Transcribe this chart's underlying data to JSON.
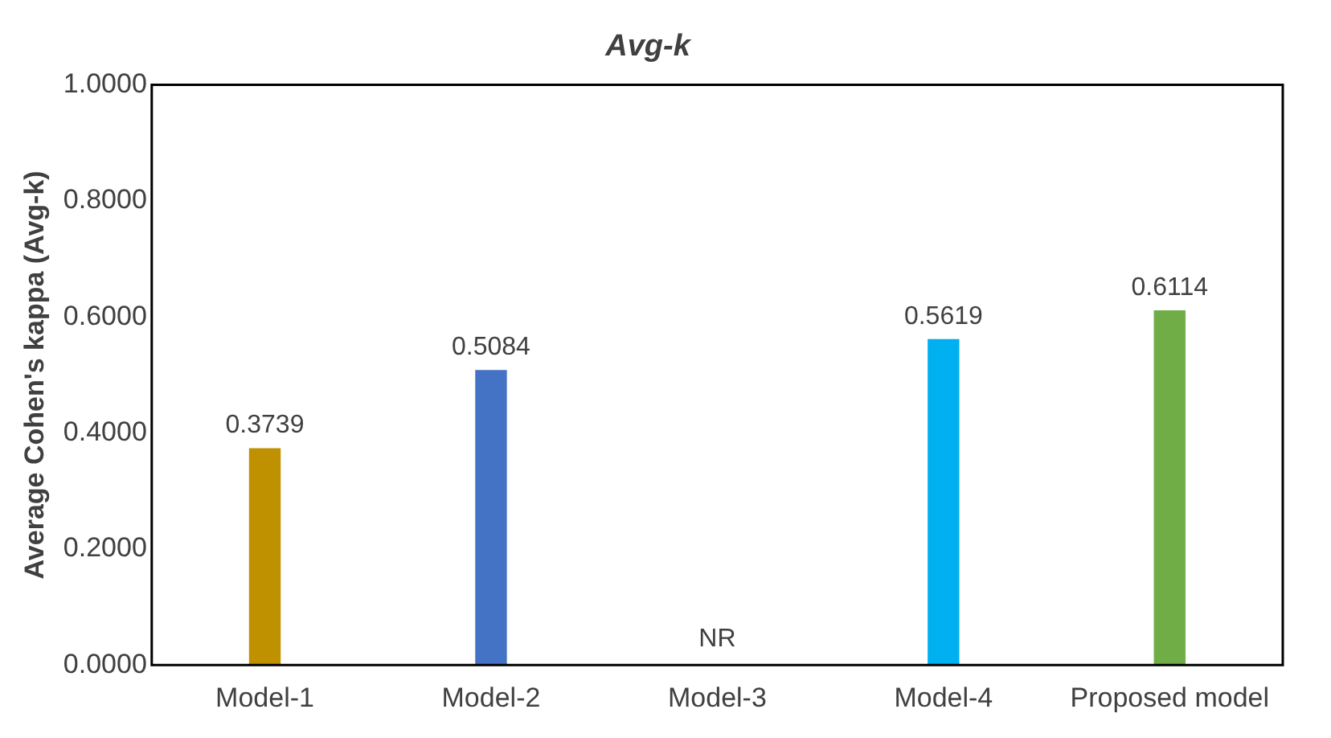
{
  "chart_data": {
    "type": "bar",
    "title": "Avg-k",
    "ylabel": "Average Cohen's kappa (Avg-k)",
    "categories": [
      "Model-1",
      "Model-2",
      "Model-3",
      "Model-4",
      "Proposed model"
    ],
    "values": [
      0.3739,
      0.5084,
      null,
      0.5619,
      0.6114
    ],
    "colors": [
      "#bf9000",
      "#4472c4",
      "#7f7f7f",
      "#00b0f0",
      "#70ad47"
    ],
    "value_labels": [
      "0.3739",
      "0.5084",
      "NR",
      "0.5619",
      "0.6114"
    ],
    "ylim": [
      0,
      1
    ],
    "yticks": [
      {
        "value": 0,
        "label": "0.0000"
      },
      {
        "value": 0.2,
        "label": "0.2000"
      },
      {
        "value": 0.4,
        "label": "0.4000"
      },
      {
        "value": 0.6,
        "label": "0.6000"
      },
      {
        "value": 0.8,
        "label": "0.8000"
      },
      {
        "value": 1,
        "label": "1.0000"
      }
    ],
    "grid": false,
    "legend": false
  }
}
